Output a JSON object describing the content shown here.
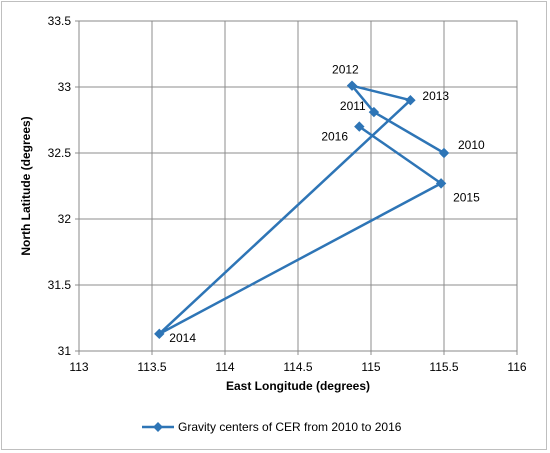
{
  "chart_data": {
    "type": "line",
    "xlabel": "East Longitude (degrees)",
    "ylabel": "North Latitude (degrees)",
    "xlim": [
      113,
      116
    ],
    "ylim": [
      31,
      33.5
    ],
    "x_ticks": [
      113,
      113.5,
      114,
      114.5,
      115,
      115.5,
      116
    ],
    "y_ticks": [
      31,
      31.5,
      32,
      32.5,
      33,
      33.5
    ],
    "grid": true,
    "legend_position": "bottom",
    "series": [
      {
        "name": "Gravity centers of CER from 2010 to 2016",
        "color": "#2e75b6",
        "marker": "diamond",
        "points": [
          {
            "label": "2010",
            "x": 115.5,
            "y": 32.5
          },
          {
            "label": "2011",
            "x": 115.02,
            "y": 32.81
          },
          {
            "label": "2012",
            "x": 114.87,
            "y": 33.01
          },
          {
            "label": "2013",
            "x": 115.27,
            "y": 32.9
          },
          {
            "label": "2014",
            "x": 113.55,
            "y": 31.13
          },
          {
            "label": "2015",
            "x": 115.48,
            "y": 32.27
          },
          {
            "label": "2016",
            "x": 114.92,
            "y": 32.7
          }
        ]
      }
    ]
  }
}
